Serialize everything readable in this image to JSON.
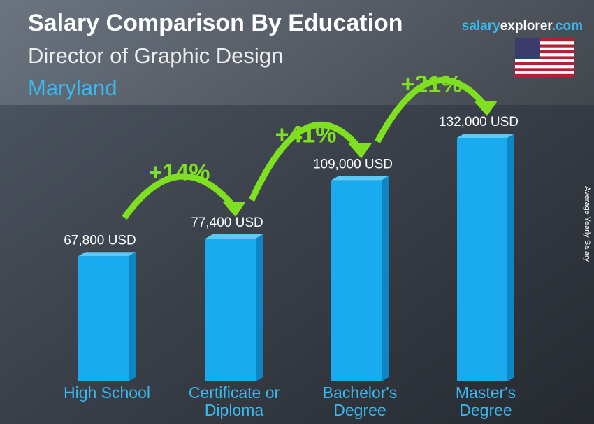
{
  "chart_data": {
    "type": "bar",
    "title": "Salary Comparison By Education",
    "subtitle": "Director of Graphic Design",
    "location": "Maryland",
    "brand": [
      "salary",
      "explorer",
      ".com"
    ],
    "axis_label": "Average Yearly Salary",
    "categories": [
      [
        "High School"
      ],
      [
        "Certificate or",
        "Diploma"
      ],
      [
        "Bachelor's",
        "Degree"
      ],
      [
        "Master's",
        "Degree"
      ]
    ],
    "values": [
      67800,
      77400,
      109000,
      132000
    ],
    "value_labels": [
      "67,800 USD",
      "77,400 USD",
      "109,000 USD",
      "132,000 USD"
    ],
    "annotations": [
      "+14%",
      "+41%",
      "+21%"
    ],
    "color": "#1aaaf0",
    "annotation_color": "#7fe01f"
  }
}
